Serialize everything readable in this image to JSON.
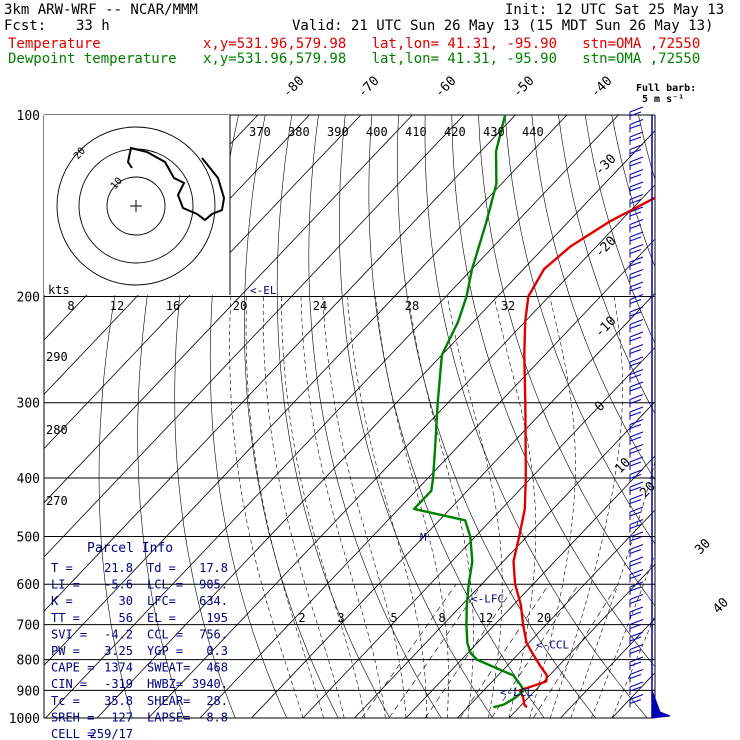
{
  "header": {
    "model": "3km ARW-WRF -- NCAR/MMM",
    "init": "Init: 12 UTC Sat 25 May 13",
    "fcst_label": "Fcst:",
    "fcst_value": "33 h",
    "valid": "Valid: 21 UTC Sun 26 May 13 (15 MDT Sun 26 May 13)"
  },
  "legend": [
    {
      "name": "Temperature",
      "info": "x,y=531.96,579.98   lat,lon= 41.31, -95.90   stn=OMA ,72550",
      "color": "#e00000"
    },
    {
      "name": "Dewpoint temperature",
      "info": "x,y=531.96,579.98   lat,lon= 41.31, -95.90   stn=OMA ,72550",
      "color": "#008000"
    }
  ],
  "wind_key": {
    "title": "Full barb:",
    "value": "5 m s⁻¹"
  },
  "chart_data": {
    "type": "line",
    "title": "",
    "xlabel": "",
    "ylabel": "",
    "y_scale": "log-pressure",
    "pressure_levels": [
      100,
      200,
      300,
      400,
      500,
      600,
      700,
      800,
      900,
      1000
    ],
    "isotherm_labels": [
      -80,
      -70,
      -60,
      -50,
      -40,
      -30,
      -20,
      -10,
      0,
      10,
      20,
      30,
      40
    ],
    "theta_labels": [
      370,
      380,
      390,
      400,
      410,
      420,
      430,
      440
    ],
    "theta_left_labels": [
      290,
      280,
      270
    ],
    "mixing_ratio_labels": [
      2,
      3,
      5,
      8,
      12,
      20
    ],
    "series": [
      {
        "name": "Temperature",
        "color": "#e00000",
        "points": [
          {
            "p": 960,
            "t": 21.5
          },
          {
            "p": 950,
            "t": 20.5
          },
          {
            "p": 925,
            "t": 19.0
          },
          {
            "p": 900,
            "t": 17.0
          },
          {
            "p": 870,
            "t": 20.5
          },
          {
            "p": 850,
            "t": 19.5
          },
          {
            "p": 820,
            "t": 16.5
          },
          {
            "p": 780,
            "t": 12.5
          },
          {
            "p": 750,
            "t": 9.5
          },
          {
            "p": 700,
            "t": 5.5
          },
          {
            "p": 650,
            "t": 1.5
          },
          {
            "p": 600,
            "t": -3.5
          },
          {
            "p": 550,
            "t": -8.0
          },
          {
            "p": 500,
            "t": -11.5
          },
          {
            "p": 450,
            "t": -15.5
          },
          {
            "p": 400,
            "t": -21.0
          },
          {
            "p": 350,
            "t": -27.5
          },
          {
            "p": 300,
            "t": -35.0
          },
          {
            "p": 250,
            "t": -44.0
          },
          {
            "p": 220,
            "t": -50.0
          },
          {
            "p": 200,
            "t": -54.0
          },
          {
            "p": 180,
            "t": -56.0
          },
          {
            "p": 165,
            "t": -55.0
          },
          {
            "p": 150,
            "t": -52.0
          },
          {
            "p": 130,
            "t": -45.0
          },
          {
            "p": 115,
            "t": -40.0
          },
          {
            "p": 100,
            "t": -36.0
          }
        ]
      },
      {
        "name": "Dewpoint temperature",
        "color": "#008000",
        "points": [
          {
            "p": 960,
            "t": 15.0
          },
          {
            "p": 950,
            "t": 16.5
          },
          {
            "p": 925,
            "t": 17.5
          },
          {
            "p": 900,
            "t": 17.8
          },
          {
            "p": 880,
            "t": 16.0
          },
          {
            "p": 850,
            "t": 13.0
          },
          {
            "p": 820,
            "t": 7.0
          },
          {
            "p": 800,
            "t": 3.0
          },
          {
            "p": 780,
            "t": 0.5
          },
          {
            "p": 750,
            "t": -2.0
          },
          {
            "p": 700,
            "t": -5.5
          },
          {
            "p": 650,
            "t": -9.0
          },
          {
            "p": 600,
            "t": -12.5
          },
          {
            "p": 550,
            "t": -16.0
          },
          {
            "p": 500,
            "t": -21.0
          },
          {
            "p": 470,
            "t": -25.0
          },
          {
            "p": 450,
            "t": -37.0
          },
          {
            "p": 420,
            "t": -37.0
          },
          {
            "p": 400,
            "t": -39.0
          },
          {
            "p": 350,
            "t": -45.0
          },
          {
            "p": 300,
            "t": -52.0
          },
          {
            "p": 250,
            "t": -60.0
          },
          {
            "p": 220,
            "t": -63.0
          },
          {
            "p": 200,
            "t": -66.0
          },
          {
            "p": 180,
            "t": -70.0
          },
          {
            "p": 150,
            "t": -76.0
          },
          {
            "p": 130,
            "t": -81.0
          },
          {
            "p": 115,
            "t": -87.0
          },
          {
            "p": 100,
            "t": -92.0
          }
        ]
      }
    ],
    "annotations": [
      {
        "text": "<-EL",
        "p": 195
      },
      {
        "text": "<-LFC",
        "p": 634
      },
      {
        "text": "<-CCL",
        "p": 756
      },
      {
        "text": "<-LCL",
        "p": 905
      }
    ],
    "hodograph": {
      "kts_label": "kts",
      "speed_labels": [
        8,
        12,
        16,
        20,
        24,
        28,
        32
      ],
      "ring_labels": [
        "10",
        "20"
      ]
    }
  },
  "parcel_info": {
    "title": "Parcel Info",
    "rows": [
      [
        "T   =",
        "21.8",
        "Td =",
        "17.8"
      ],
      [
        "LI  =",
        "-5.6",
        "LCL =",
        "905."
      ],
      [
        "K   =",
        "30",
        "LFC=",
        "634."
      ],
      [
        "TT  =",
        "56",
        "EL  =",
        "195"
      ],
      [
        "SVI =",
        "-4.2",
        "CCL =",
        "756."
      ],
      [
        "PW  =",
        "3.25",
        "YGP =",
        "0.3"
      ],
      [
        "CAPE =",
        "1374",
        "SWEAT=",
        "468"
      ],
      [
        "CIN =",
        "-319",
        "HWBZ=",
        "3940."
      ],
      [
        "Tc  =",
        "35.8",
        "SHEAR=",
        "28."
      ],
      [
        "SREH =",
        "127",
        "LAPSE=",
        "8.8"
      ],
      [
        "CELL =",
        "259/17",
        "",
        ""
      ]
    ]
  },
  "colors": {
    "grid": "#000000",
    "temperature": "#e00000",
    "dewpoint": "#008000",
    "label_blue": "#000080",
    "wind": "#0000b0"
  }
}
